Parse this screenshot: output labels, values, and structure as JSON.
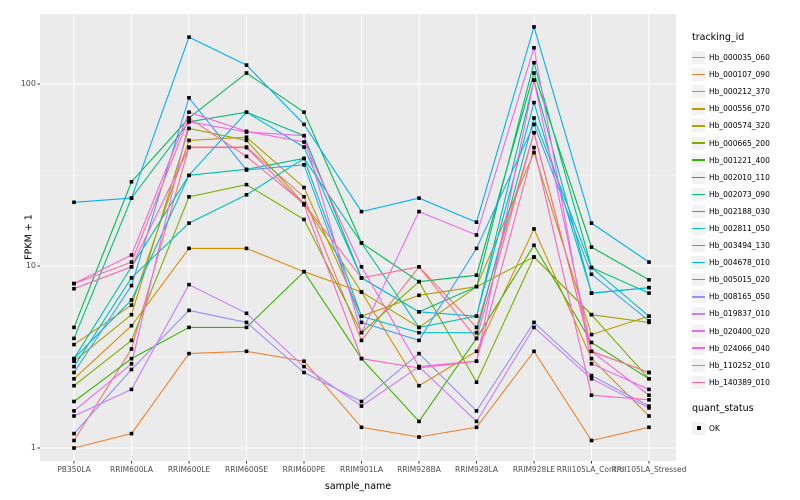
{
  "chart_data": {
    "type": "line",
    "title": "",
    "xlabel": "sample_name",
    "ylabel": "FPKM + 1",
    "y_scale": "log10",
    "ylim": [
      0.93,
      240
    ],
    "grid": true,
    "legend_position": "right",
    "legend_title": "tracking_id",
    "panel_bg": "#EBEBEB",
    "grid_color": "#FFFFFF",
    "point_color": "#000000",
    "y_ticks": [
      {
        "value": 1,
        "label": "1"
      },
      {
        "value": 10,
        "label": "10"
      },
      {
        "value": 100,
        "label": "100"
      }
    ],
    "y_minor_ticks": [
      3.1623,
      31.623
    ],
    "categories": [
      "PB350LA",
      "RRIM600LA",
      "RRIM600LE",
      "RRIM600SE",
      "RRIM600PE",
      "RRIM901LA",
      "RRIM928BA",
      "RRIM928LA",
      "RRIM928LE",
      "RRII105LA_Control",
      "RRII105LA_Stressed"
    ],
    "series": [
      {
        "name": "Hb_000035_060",
        "color": "#F8766D",
        "values": [
          1.1,
          3.5,
          45,
          45,
          24,
          3.9,
          9.9,
          4.6,
          54,
          3.4,
          2.6
        ]
      },
      {
        "name": "Hb_000107_090",
        "color": "#EA8331",
        "values": [
          1.0,
          1.2,
          3.3,
          3.4,
          3.0,
          1.3,
          1.15,
          1.3,
          3.4,
          1.1,
          1.3
        ]
      },
      {
        "name": "Hb_000212_370",
        "color": "#D89000",
        "values": [
          2.4,
          4.7,
          12.5,
          12.5,
          9.3,
          7.2,
          2.2,
          3.4,
          16,
          3.1,
          1.5
        ]
      },
      {
        "name": "Hb_000556_070",
        "color": "#C09B00",
        "values": [
          3.7,
          6.1,
          49,
          51,
          27,
          5.3,
          6.9,
          7.7,
          42,
          4.2,
          5.3
        ]
      },
      {
        "name": "Hb_000574_320",
        "color": "#A3A500",
        "values": [
          3.0,
          5.4,
          57,
          49,
          22,
          7.2,
          4.6,
          7.7,
          11.2,
          5.4,
          4.9
        ]
      },
      {
        "name": "Hb_000665_200",
        "color": "#7CAE00",
        "values": [
          2.2,
          3.9,
          24,
          28,
          18,
          4.3,
          8.2,
          2.3,
          11.2,
          5.4,
          2.4
        ]
      },
      {
        "name": "Hb_001221_400",
        "color": "#39B600",
        "values": [
          1.8,
          3.1,
          4.6,
          4.6,
          9.3,
          3.1,
          1.4,
          4.0,
          13,
          3.8,
          2.4
        ]
      },
      {
        "name": "Hb_002010_110",
        "color": "#00BB4E",
        "values": [
          4.6,
          29,
          65,
          115,
          70,
          13.4,
          8.2,
          8.9,
          115,
          12.7,
          8.4
        ]
      },
      {
        "name": "Hb_002073_090",
        "color": "#00BF7D",
        "values": [
          4.0,
          23.6,
          62,
          70,
          52,
          8.6,
          5.6,
          7.7,
          131,
          9.8,
          7.1
        ]
      },
      {
        "name": "Hb_002188_030",
        "color": "#00C1A3",
        "values": [
          3.1,
          9.9,
          31.5,
          34,
          39,
          13.4,
          4.6,
          5.3,
          105,
          7.1,
          7.6
        ]
      },
      {
        "name": "Hb_002811_050",
        "color": "#00BFC4",
        "values": [
          2.8,
          8.6,
          17.2,
          24.6,
          39,
          5.3,
          4.3,
          4.3,
          65,
          9.8,
          5.3
        ]
      },
      {
        "name": "Hb_003494_130",
        "color": "#00BAE0",
        "values": [
          3.1,
          6.5,
          31.5,
          70,
          45,
          8.6,
          5.6,
          5.3,
          79,
          7.1,
          7.6
        ]
      },
      {
        "name": "Hb_004678_010",
        "color": "#00B0F6",
        "values": [
          22.4,
          23.6,
          181,
          127,
          60,
          19.9,
          23.6,
          17.4,
          206,
          17.2,
          10.5
        ]
      },
      {
        "name": "Hb_005015_020",
        "color": "#35A2FF",
        "values": [
          2.6,
          7.8,
          84,
          33.7,
          36,
          4.9,
          3.9,
          12.5,
          60,
          9.0,
          5.0
        ]
      },
      {
        "name": "Hb_008165_050",
        "color": "#9590FF",
        "values": [
          1.2,
          2.7,
          5.7,
          4.9,
          2.6,
          1.8,
          3.3,
          1.6,
          4.9,
          2.5,
          1.7
        ]
      },
      {
        "name": "Hb_019837_010",
        "color": "#C77CFF",
        "values": [
          1.5,
          2.1,
          7.9,
          5.5,
          2.8,
          1.7,
          2.8,
          1.4,
          4.6,
          2.4,
          1.66
        ]
      },
      {
        "name": "Hb_020400_020",
        "color": "#E76BF3",
        "values": [
          1.6,
          2.9,
          62,
          54.5,
          52,
          4.3,
          19.9,
          14.8,
          158,
          2.9,
          2.1
        ]
      },
      {
        "name": "Hb_024066_040",
        "color": "#FA62DB",
        "values": [
          8.0,
          11.5,
          70,
          55,
          48,
          9.9,
          2.8,
          3.0,
          105,
          3.4,
          1.95
        ]
      },
      {
        "name": "Hb_110252_010",
        "color": "#FF62BC",
        "values": [
          7.5,
          9.9,
          44.7,
          44.7,
          21.7,
          3.1,
          2.75,
          3.0,
          44.7,
          1.95,
          1.84
        ]
      },
      {
        "name": "Hb_140389_010",
        "color": "#FF6A98",
        "values": [
          8.0,
          10.5,
          65,
          40,
          22,
          8.6,
          9.9,
          4.0,
          54,
          3.4,
          2.6
        ]
      }
    ],
    "quant_legend": {
      "title": "quant_status",
      "items": [
        "OK"
      ],
      "marker": "black-square"
    }
  }
}
